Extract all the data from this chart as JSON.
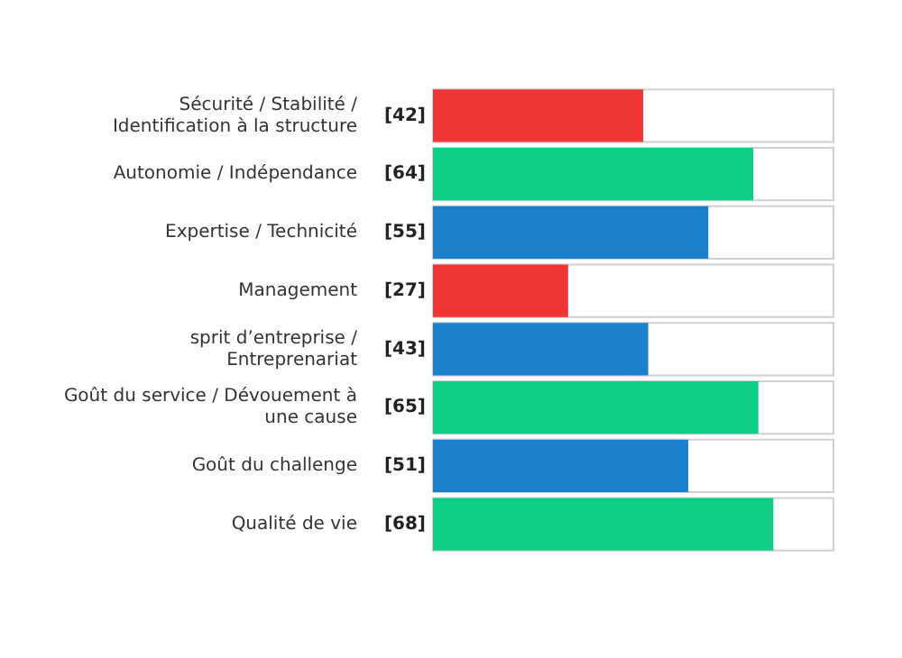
{
  "chart_data": {
    "type": "bar",
    "orientation": "horizontal",
    "categories": [
      "Sécurité / Stabilité / Identification à la structure",
      "Autonomie / Indépendance",
      "Expertise / Technicité",
      "Management",
      "sprit d’entreprise / Entreprenariat",
      "Goût du service / Dévouement à une cause",
      "Goût du challenge",
      "Qualité de vie"
    ],
    "values": [
      42,
      64,
      55,
      27,
      43,
      65,
      51,
      68
    ],
    "value_labels": [
      "[42]",
      "[64]",
      "[55]",
      "[27]",
      "[43]",
      "[65]",
      "[51]",
      "[68]"
    ],
    "colors": [
      "#f03535",
      "#0fcf87",
      "#1a80cc",
      "#f03535",
      "#1a80cc",
      "#0fcf87",
      "#1a80cc",
      "#0fcf87"
    ],
    "tick_labels": "y",
    "legend": false
  }
}
